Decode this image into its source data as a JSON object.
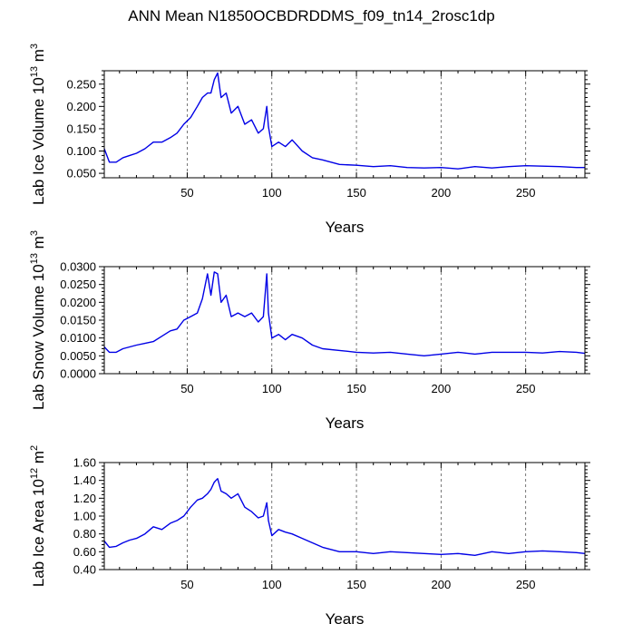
{
  "page_title": "ANN Mean N1850OCBDRDDMS_f09_tn14_2rosc1dp",
  "colors": {
    "line": "#0000e6",
    "frame": "#000000",
    "grid": "#555555"
  },
  "chart_data": [
    {
      "type": "line",
      "title": "",
      "xlabel": "Years",
      "ylabel": "Lab Ice Volume 10",
      "ylabel_sup": "13",
      "ylabel_unit": "m",
      "ylabel_unit_sup": "3",
      "xlim": [
        1,
        285
      ],
      "ylim": [
        0.04,
        0.28
      ],
      "xticks": [
        50,
        100,
        150,
        200,
        250
      ],
      "xtick_labels": [
        "50",
        "100",
        "150",
        "200",
        "250"
      ],
      "yticks": [
        0.05,
        0.1,
        0.15,
        0.2,
        0.25
      ],
      "ytick_labels": [
        "0.050",
        "0.100",
        "0.150",
        "0.200",
        "0.250"
      ],
      "grid": "vertical dashed at x ticks",
      "series": [
        {
          "name": "Lab Ice Volume",
          "x": [
            1,
            4,
            8,
            12,
            16,
            20,
            25,
            30,
            35,
            40,
            44,
            48,
            52,
            56,
            59,
            62,
            64,
            66,
            68,
            70,
            73,
            76,
            80,
            84,
            88,
            92,
            95,
            97,
            98,
            100,
            104,
            108,
            112,
            118,
            124,
            130,
            140,
            150,
            160,
            170,
            180,
            190,
            200,
            210,
            220,
            230,
            240,
            250,
            260,
            270,
            280,
            285
          ],
          "y": [
            0.105,
            0.075,
            0.075,
            0.085,
            0.09,
            0.095,
            0.105,
            0.12,
            0.12,
            0.13,
            0.14,
            0.16,
            0.175,
            0.2,
            0.22,
            0.23,
            0.23,
            0.26,
            0.275,
            0.22,
            0.23,
            0.185,
            0.2,
            0.16,
            0.17,
            0.14,
            0.15,
            0.2,
            0.155,
            0.11,
            0.12,
            0.11,
            0.125,
            0.1,
            0.085,
            0.08,
            0.07,
            0.068,
            0.065,
            0.067,
            0.063,
            0.062,
            0.063,
            0.06,
            0.065,
            0.062,
            0.065,
            0.067,
            0.066,
            0.065,
            0.063,
            0.063
          ]
        }
      ]
    },
    {
      "type": "line",
      "title": "",
      "xlabel": "Years",
      "ylabel": "Lab Snow Volume 10",
      "ylabel_sup": "13",
      "ylabel_unit": "m",
      "ylabel_unit_sup": "3",
      "xlim": [
        1,
        285
      ],
      "ylim": [
        0,
        0.03
      ],
      "xticks": [
        50,
        100,
        150,
        200,
        250
      ],
      "xtick_labels": [
        "50",
        "100",
        "150",
        "200",
        "250"
      ],
      "yticks": [
        0,
        0.005,
        0.01,
        0.015,
        0.02,
        0.025,
        0.03
      ],
      "ytick_labels": [
        "0.0000",
        "0.0050",
        "0.0100",
        "0.0150",
        "0.0200",
        "0.0250",
        "0.0300"
      ],
      "grid": "vertical dashed at x ticks",
      "series": [
        {
          "name": "Lab Snow Volume",
          "x": [
            1,
            4,
            8,
            12,
            16,
            20,
            25,
            30,
            35,
            40,
            44,
            48,
            52,
            56,
            59,
            62,
            64,
            66,
            68,
            70,
            73,
            76,
            80,
            84,
            88,
            92,
            95,
            97,
            98,
            100,
            104,
            108,
            112,
            118,
            124,
            130,
            140,
            150,
            160,
            170,
            180,
            190,
            200,
            210,
            220,
            230,
            240,
            250,
            260,
            270,
            280,
            285
          ],
          "y": [
            0.0075,
            0.006,
            0.006,
            0.007,
            0.0075,
            0.008,
            0.0085,
            0.009,
            0.0105,
            0.012,
            0.0125,
            0.015,
            0.016,
            0.017,
            0.021,
            0.028,
            0.022,
            0.0285,
            0.028,
            0.02,
            0.022,
            0.016,
            0.017,
            0.016,
            0.017,
            0.0145,
            0.016,
            0.028,
            0.017,
            0.01,
            0.011,
            0.0095,
            0.011,
            0.01,
            0.008,
            0.007,
            0.0065,
            0.006,
            0.0058,
            0.006,
            0.0055,
            0.005,
            0.0055,
            0.006,
            0.0055,
            0.006,
            0.006,
            0.006,
            0.0058,
            0.0062,
            0.006,
            0.0057
          ]
        }
      ]
    },
    {
      "type": "line",
      "title": "",
      "xlabel": "Years",
      "ylabel": "Lab Ice Area 10",
      "ylabel_sup": "12",
      "ylabel_unit": "m",
      "ylabel_unit_sup": "2",
      "xlim": [
        1,
        285
      ],
      "ylim": [
        0.4,
        1.6
      ],
      "xticks": [
        50,
        100,
        150,
        200,
        250
      ],
      "xtick_labels": [
        "50",
        "100",
        "150",
        "200",
        "250"
      ],
      "yticks": [
        0.4,
        0.6,
        0.8,
        1.0,
        1.2,
        1.4,
        1.6
      ],
      "ytick_labels": [
        "0.40",
        "0.60",
        "0.80",
        "1.00",
        "1.20",
        "1.40",
        "1.60"
      ],
      "grid": "vertical dashed at x ticks",
      "series": [
        {
          "name": "Lab Ice Area",
          "x": [
            1,
            4,
            8,
            12,
            16,
            20,
            25,
            30,
            35,
            40,
            44,
            48,
            52,
            56,
            59,
            62,
            64,
            66,
            68,
            70,
            73,
            76,
            80,
            84,
            88,
            92,
            95,
            97,
            98,
            100,
            104,
            108,
            112,
            118,
            124,
            130,
            140,
            150,
            160,
            170,
            180,
            190,
            200,
            210,
            220,
            230,
            240,
            250,
            260,
            270,
            280,
            285
          ],
          "y": [
            0.72,
            0.65,
            0.66,
            0.7,
            0.73,
            0.75,
            0.8,
            0.88,
            0.85,
            0.92,
            0.95,
            1.0,
            1.1,
            1.18,
            1.2,
            1.25,
            1.3,
            1.38,
            1.42,
            1.28,
            1.25,
            1.2,
            1.25,
            1.1,
            1.05,
            0.98,
            1.0,
            1.15,
            0.95,
            0.78,
            0.85,
            0.82,
            0.8,
            0.75,
            0.7,
            0.65,
            0.6,
            0.6,
            0.58,
            0.6,
            0.59,
            0.58,
            0.57,
            0.58,
            0.56,
            0.6,
            0.58,
            0.6,
            0.61,
            0.6,
            0.59,
            0.58
          ]
        }
      ]
    }
  ]
}
